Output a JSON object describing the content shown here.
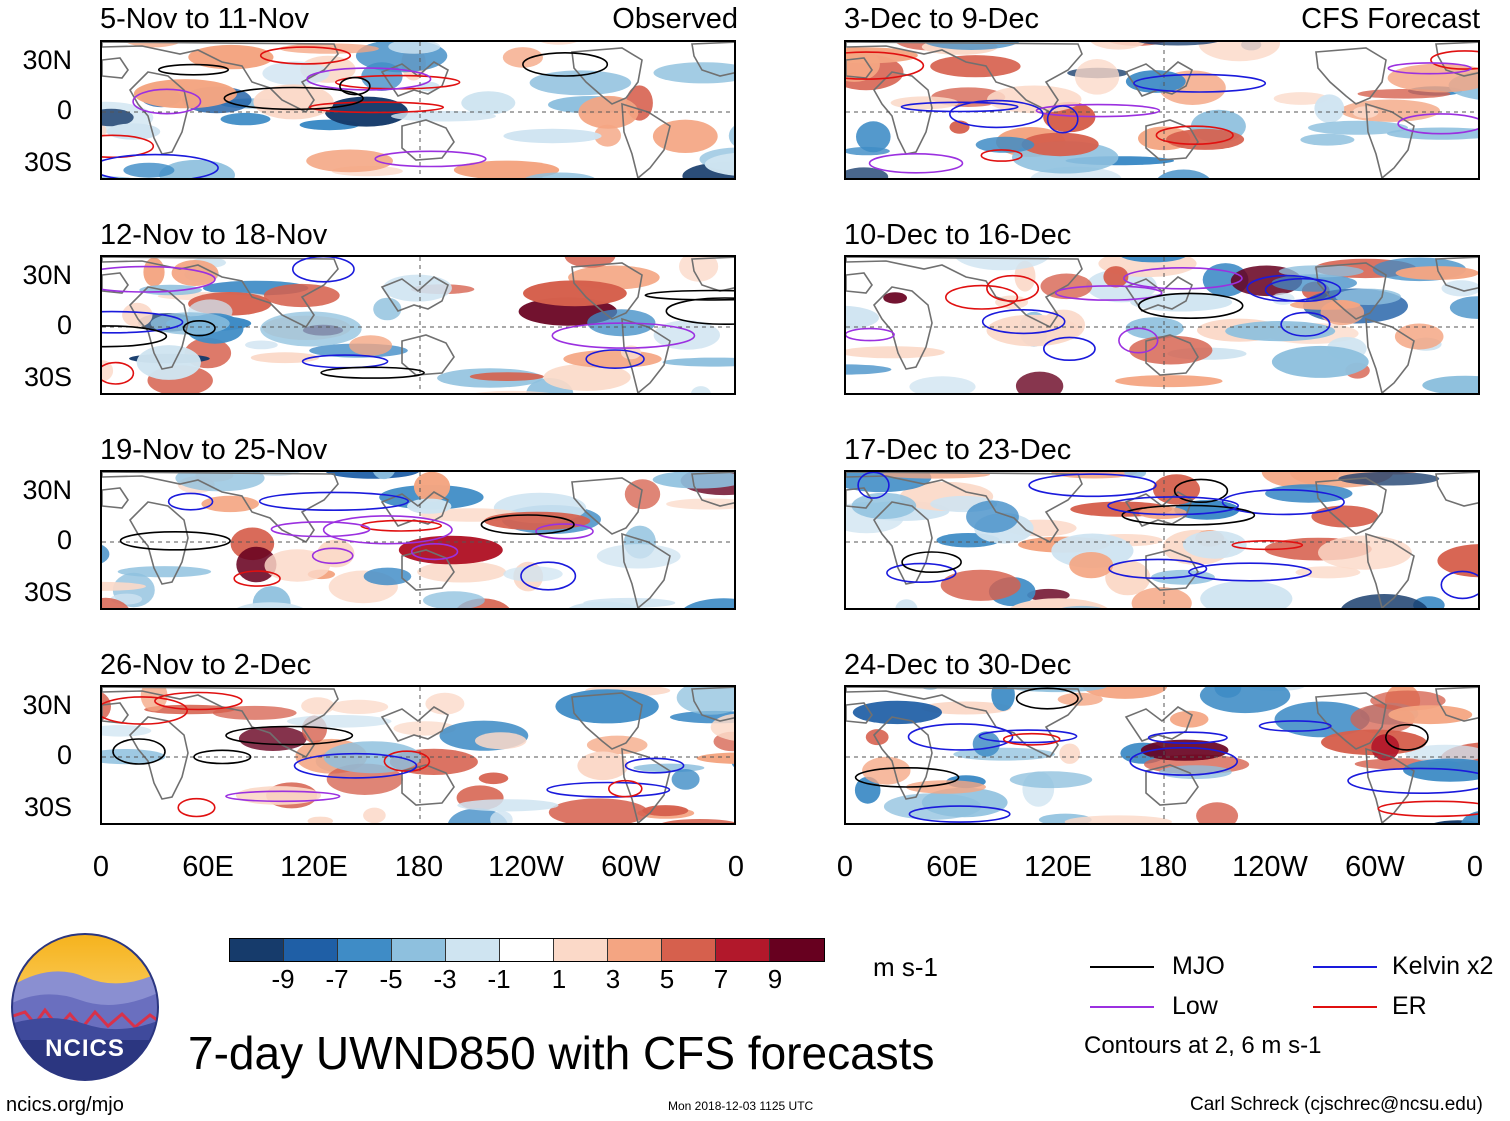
{
  "panels": {
    "left": [
      {
        "title": "5-Nov to 11-Nov",
        "tag": "Observed"
      },
      {
        "title": "12-Nov to 18-Nov",
        "tag": ""
      },
      {
        "title": "19-Nov to 25-Nov",
        "tag": ""
      },
      {
        "title": "26-Nov to 2-Dec",
        "tag": ""
      }
    ],
    "right": [
      {
        "title": "3-Dec to 9-Dec",
        "tag": "CFS Forecast"
      },
      {
        "title": "10-Dec to 16-Dec",
        "tag": ""
      },
      {
        "title": "17-Dec to 23-Dec",
        "tag": ""
      },
      {
        "title": "24-Dec to 30-Dec",
        "tag": ""
      }
    ]
  },
  "lat_labels": [
    "30N",
    "0",
    "30S"
  ],
  "lon_labels": [
    "0",
    "60E",
    "120E",
    "180",
    "120W",
    "60W",
    "0"
  ],
  "colorbar": {
    "colors": [
      "#163b6b",
      "#1f5fa6",
      "#3f8cc6",
      "#8ec0de",
      "#cfe4f1",
      "#ffffff",
      "#fbd9c8",
      "#f4a582",
      "#d6604d",
      "#b2182b",
      "#67001f"
    ],
    "ticks": [
      "-9",
      "-7",
      "-5",
      "-3",
      "-1",
      "1",
      "3",
      "5",
      "7",
      "9"
    ],
    "units": "m s-1"
  },
  "legend": {
    "mjo": "MJO",
    "kelvin": "Kelvin x2",
    "low": "Low",
    "er": "ER",
    "mjo_color": "#000000",
    "kelvin_color": "#1a1adc",
    "low_color": "#9b30e0",
    "er_color": "#e01010",
    "contours": "Contours at 2, 6 m s-1"
  },
  "logo_text": "NCICS",
  "main_title": "7-day UWND850 with CFS forecasts",
  "footer": {
    "url": "ncics.org/mjo",
    "timestamp": "Mon 2018-12-03 1125 UTC",
    "author": "Carl Schreck (cjschrec@ncsu.edu)"
  }
}
